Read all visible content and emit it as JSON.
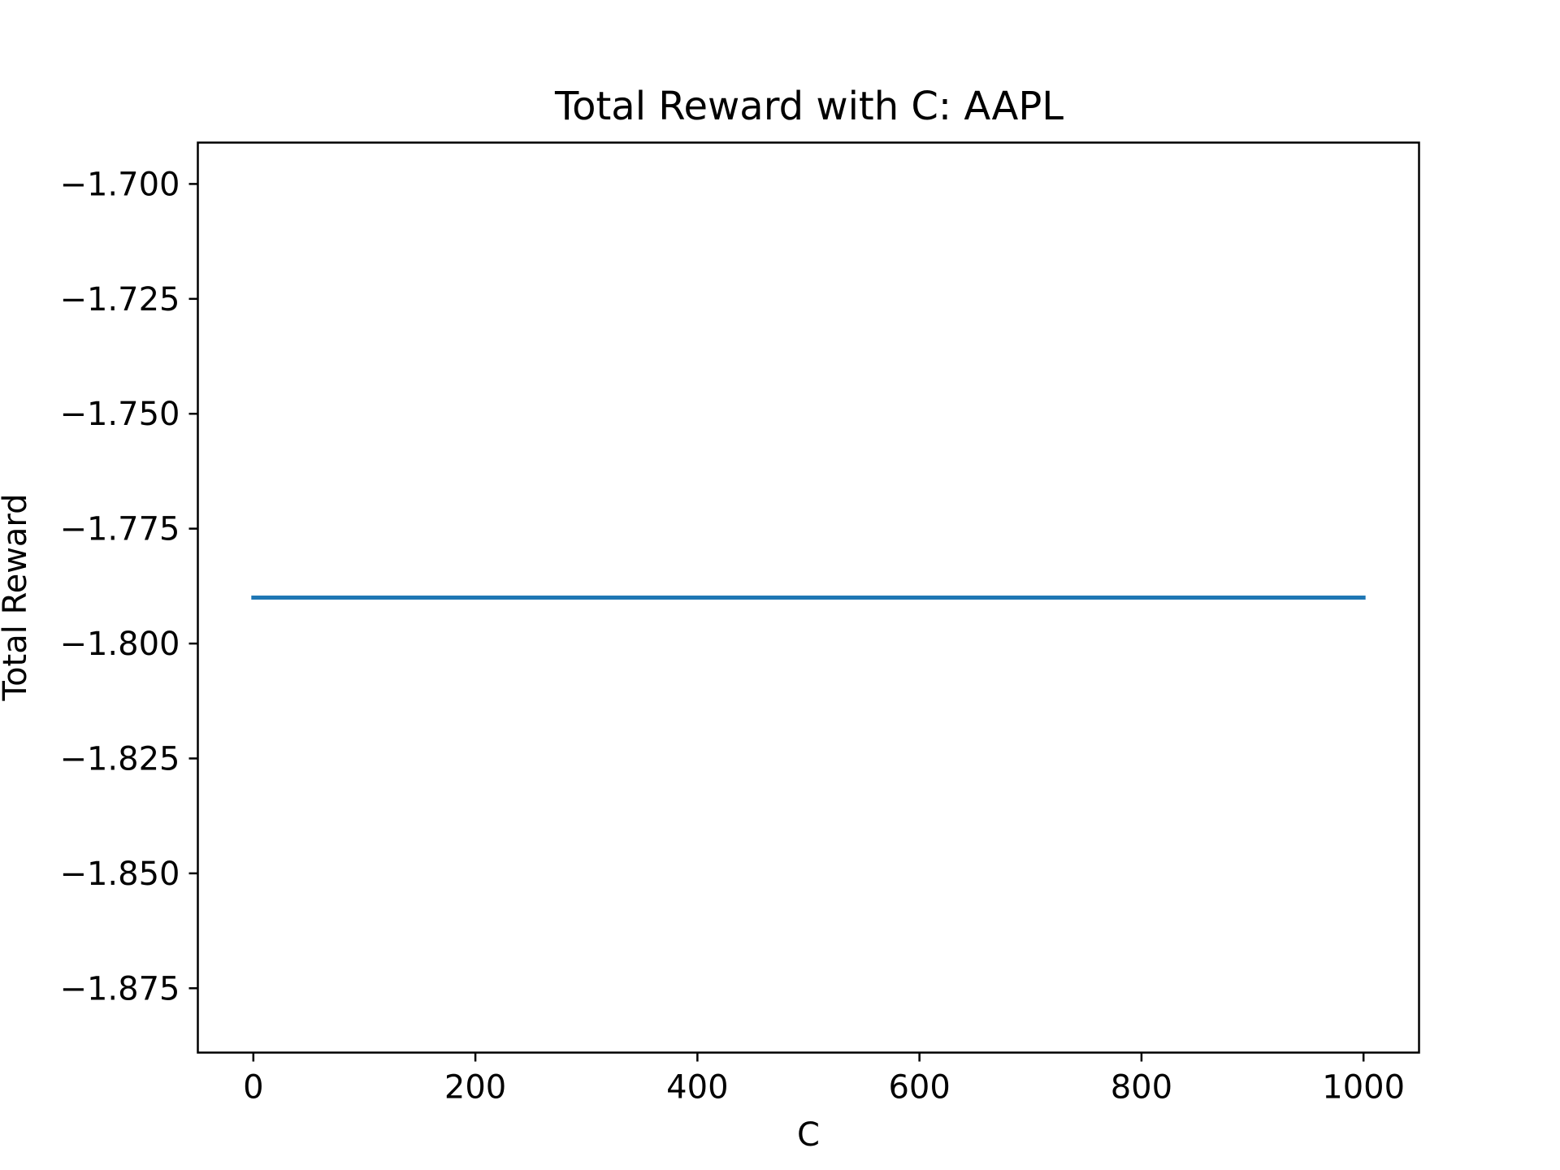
{
  "chart_data": {
    "type": "line",
    "title": "Total Reward with C: AAPL",
    "xlabel": "C",
    "ylabel": "Total Reward",
    "xlim": [
      -50,
      1050
    ],
    "ylim": [
      -1.889,
      -1.691
    ],
    "xticks": [
      0,
      200,
      400,
      600,
      800,
      1000
    ],
    "xtick_labels": [
      "0",
      "200",
      "400",
      "600",
      "800",
      "1000"
    ],
    "yticks": [
      -1.7,
      -1.725,
      -1.75,
      -1.775,
      -1.8,
      -1.825,
      -1.85,
      -1.875
    ],
    "ytick_labels": [
      "−1.700",
      "−1.725",
      "−1.750",
      "−1.775",
      "−1.800",
      "−1.825",
      "−1.850",
      "−1.875"
    ],
    "grid": false,
    "series": [
      {
        "color": "#1f77b4",
        "x": [
          0,
          1000
        ],
        "y": [
          -1.79,
          -1.79
        ]
      }
    ]
  }
}
